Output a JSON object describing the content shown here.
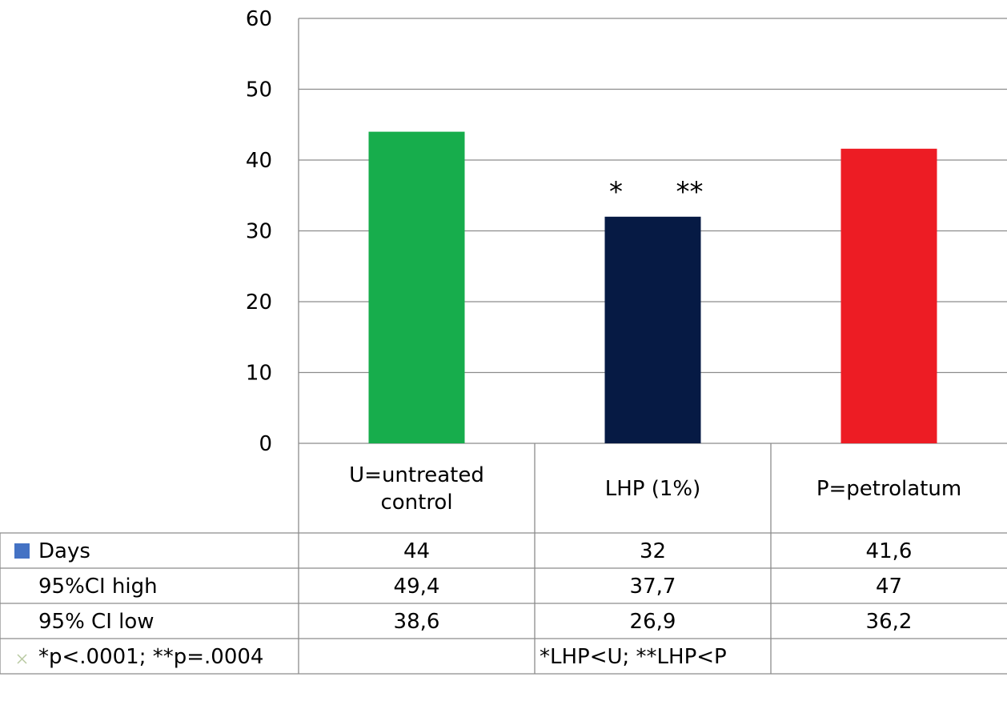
{
  "chart_data": {
    "type": "bar",
    "title": "",
    "xlabel": "",
    "ylabel": "",
    "ylim": [
      0,
      60
    ],
    "yticks": [
      0,
      10,
      20,
      30,
      40,
      50,
      60
    ],
    "grid": true,
    "categories": [
      "U=untreated control",
      "LHP (1%)",
      "P=petrolatum"
    ],
    "category_lines": [
      [
        "U=untreated",
        "control"
      ],
      [
        "LHP (1%)"
      ],
      [
        "P=petrolatum"
      ]
    ],
    "series": [
      {
        "name": "Days",
        "values": [
          44,
          32,
          41.6
        ],
        "colors": [
          "#17ad4c",
          "#061a44",
          "#ed1c24"
        ]
      }
    ],
    "legend_color": "#4472c4",
    "data_table": {
      "rows": [
        {
          "label": "Days",
          "cells": [
            "44",
            "32",
            "41,6"
          ],
          "marker": "square"
        },
        {
          "label": "95%CI high",
          "cells": [
            "49,4",
            "37,7",
            "47"
          ]
        },
        {
          "label": "95% CI low",
          "cells": [
            "38,6",
            "26,9",
            "36,2"
          ]
        },
        {
          "label": "*p<.0001; **p=.0004",
          "cells": [
            "",
            "*LHP<U; **LHP<P",
            ""
          ],
          "marker": "x"
        }
      ]
    },
    "annotations": [
      {
        "text": "*",
        "category": 1,
        "offset": -1
      },
      {
        "text": "**",
        "category": 1,
        "offset": 1
      }
    ]
  }
}
